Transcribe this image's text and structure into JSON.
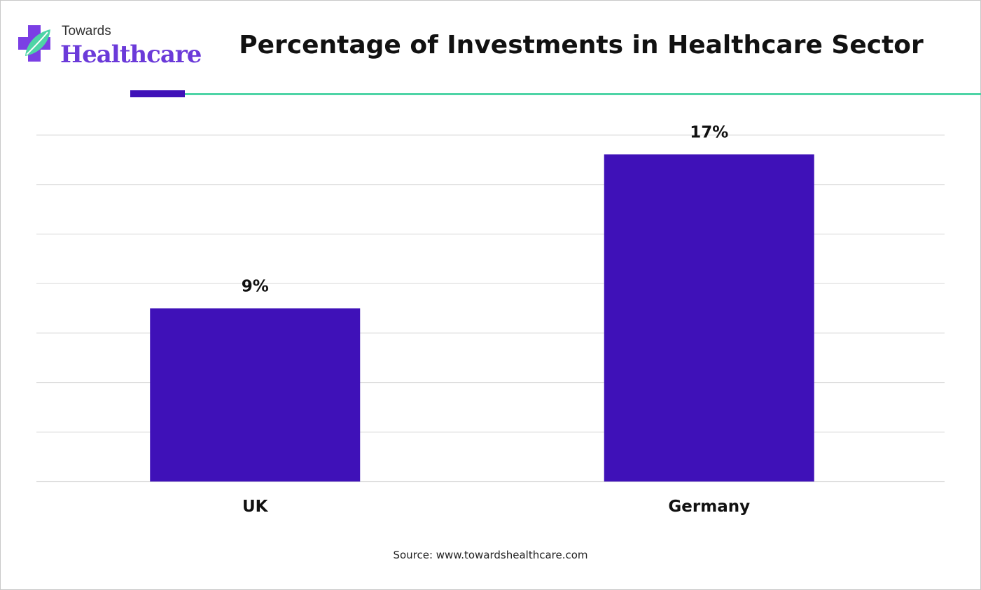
{
  "header": {
    "logo_top": "Towards",
    "logo_bottom": "Healthcare",
    "title": "Percentage of Investments in Healthcare Sector"
  },
  "colors": {
    "bar": "#3f11b8",
    "accent_rule": "#3f11b8",
    "teal_rule": "#4ed4a6",
    "grid": "#d9d9d9"
  },
  "chart_data": {
    "type": "bar",
    "title": "Percentage of Investments in Healthcare Sector",
    "categories": [
      "UK",
      "Germany"
    ],
    "values": [
      9,
      17
    ],
    "data_labels": [
      "9%",
      "17%"
    ],
    "xlabel": "",
    "ylabel": "",
    "ylim": [
      0,
      18
    ],
    "grid": true,
    "legend": "none"
  },
  "footer": {
    "source": "Source: www.towardshealthcare.com"
  }
}
